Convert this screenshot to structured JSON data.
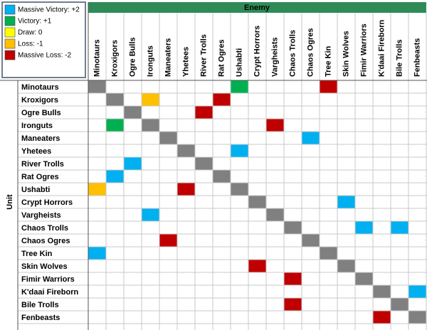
{
  "legend": [
    {
      "label": "Massive Victory: +2",
      "value": 2,
      "color": "#00b0f0"
    },
    {
      "label": "Victory: +1",
      "value": 1,
      "color": "#00b050"
    },
    {
      "label": "Draw: 0",
      "value": 0,
      "color": "#ffff00"
    },
    {
      "label": "Loss: -1",
      "value": -1,
      "color": "#ffc000"
    },
    {
      "label": "Massive Loss: -2",
      "value": -2,
      "color": "#c00000"
    }
  ],
  "diagonal_color": "#808080",
  "header_color": "#2e8b57",
  "column_group": "Enemy",
  "row_group": "Unit",
  "columns": [
    "Minotaurs",
    "Kroxigors",
    "Ogre Bulls",
    "Ironguts",
    "Maneaters",
    "Yhetees",
    "River Trolls",
    "Rat Ogres",
    "Ushabti",
    "Crypt Horrors",
    "Vargheists",
    "Chaos Trolls",
    "Chaos Ogres",
    "Tree Kin",
    "Skin Wolves",
    "Fimir Warriors",
    "K'daai Fireborn",
    "Bile Trolls",
    "Fenbeasts"
  ],
  "rows": [
    {
      "label": "Minotaurs",
      "cells": [
        null,
        null,
        null,
        null,
        null,
        null,
        null,
        null,
        1,
        null,
        null,
        null,
        null,
        -2,
        null,
        null,
        null,
        null,
        null
      ]
    },
    {
      "label": "Kroxigors",
      "cells": [
        null,
        null,
        null,
        -1,
        null,
        null,
        null,
        -2,
        null,
        null,
        null,
        null,
        null,
        null,
        null,
        null,
        null,
        null,
        null
      ]
    },
    {
      "label": "Ogre Bulls",
      "cells": [
        null,
        null,
        null,
        null,
        null,
        null,
        -2,
        null,
        null,
        null,
        null,
        null,
        null,
        null,
        null,
        null,
        null,
        null,
        null
      ]
    },
    {
      "label": "Ironguts",
      "cells": [
        null,
        1,
        null,
        null,
        null,
        null,
        null,
        null,
        null,
        null,
        -2,
        null,
        null,
        null,
        null,
        null,
        null,
        null,
        null
      ]
    },
    {
      "label": "Maneaters",
      "cells": [
        null,
        null,
        null,
        null,
        null,
        null,
        null,
        null,
        null,
        null,
        null,
        null,
        2,
        null,
        null,
        null,
        null,
        null,
        null
      ]
    },
    {
      "label": "Yhetees",
      "cells": [
        null,
        null,
        null,
        null,
        null,
        null,
        null,
        null,
        2,
        null,
        null,
        null,
        null,
        null,
        null,
        null,
        null,
        null,
        null
      ]
    },
    {
      "label": "River Trolls",
      "cells": [
        null,
        null,
        2,
        null,
        null,
        null,
        null,
        null,
        null,
        null,
        null,
        null,
        null,
        null,
        null,
        null,
        null,
        null,
        null
      ]
    },
    {
      "label": "Rat Ogres",
      "cells": [
        null,
        2,
        null,
        null,
        null,
        null,
        null,
        null,
        null,
        null,
        null,
        null,
        null,
        null,
        null,
        null,
        null,
        null,
        null
      ]
    },
    {
      "label": "Ushabti",
      "cells": [
        -1,
        null,
        null,
        null,
        null,
        -2,
        null,
        null,
        null,
        null,
        null,
        null,
        null,
        null,
        null,
        null,
        null,
        null,
        null
      ]
    },
    {
      "label": "Crypt Horrors",
      "cells": [
        null,
        null,
        null,
        null,
        null,
        null,
        null,
        null,
        null,
        null,
        null,
        null,
        null,
        null,
        2,
        null,
        null,
        null,
        null
      ]
    },
    {
      "label": "Vargheists",
      "cells": [
        null,
        null,
        null,
        2,
        null,
        null,
        null,
        null,
        null,
        null,
        null,
        null,
        null,
        null,
        null,
        null,
        null,
        null,
        null
      ]
    },
    {
      "label": "Chaos Trolls",
      "cells": [
        null,
        null,
        null,
        null,
        null,
        null,
        null,
        null,
        null,
        null,
        null,
        null,
        null,
        null,
        null,
        2,
        null,
        2,
        null
      ]
    },
    {
      "label": "Chaos Ogres",
      "cells": [
        null,
        null,
        null,
        null,
        -2,
        null,
        null,
        null,
        null,
        null,
        null,
        null,
        null,
        null,
        null,
        null,
        null,
        null,
        null
      ]
    },
    {
      "label": "Tree Kin",
      "cells": [
        2,
        null,
        null,
        null,
        null,
        null,
        null,
        null,
        null,
        null,
        null,
        null,
        null,
        null,
        null,
        null,
        null,
        null,
        null
      ]
    },
    {
      "label": "Skin Wolves",
      "cells": [
        null,
        null,
        null,
        null,
        null,
        null,
        null,
        null,
        null,
        -2,
        null,
        null,
        null,
        null,
        null,
        null,
        null,
        null,
        null
      ]
    },
    {
      "label": "Fimir Warriors",
      "cells": [
        null,
        null,
        null,
        null,
        null,
        null,
        null,
        null,
        null,
        null,
        null,
        -2,
        null,
        null,
        null,
        null,
        null,
        null,
        null
      ]
    },
    {
      "label": "K'daai Fireborn",
      "cells": [
        null,
        null,
        null,
        null,
        null,
        null,
        null,
        null,
        null,
        null,
        null,
        null,
        null,
        null,
        null,
        null,
        null,
        null,
        2
      ]
    },
    {
      "label": "Bile Trolls",
      "cells": [
        null,
        null,
        null,
        null,
        null,
        null,
        null,
        null,
        null,
        null,
        null,
        -2,
        null,
        null,
        null,
        null,
        null,
        null,
        null
      ]
    },
    {
      "label": "Fenbeasts",
      "cells": [
        null,
        null,
        null,
        null,
        null,
        null,
        null,
        null,
        null,
        null,
        null,
        null,
        null,
        null,
        null,
        null,
        -2,
        null,
        null
      ]
    }
  ]
}
